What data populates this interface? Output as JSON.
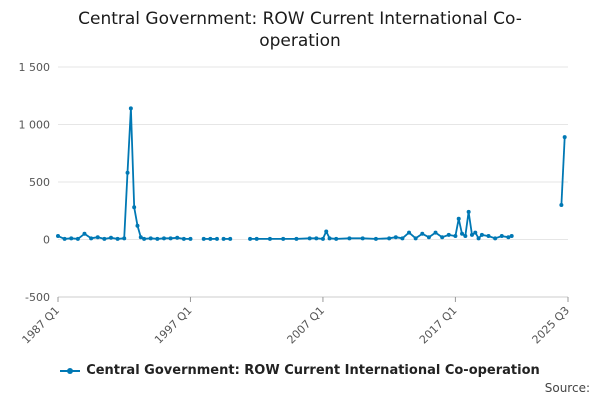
{
  "chart_data": {
    "type": "line",
    "title": "Central Government: ROW Current International Co-operation",
    "xlabel": "",
    "ylabel": "",
    "ylim": [
      -500,
      1500
    ],
    "yticks": [
      -500,
      0,
      500,
      1000,
      1500
    ],
    "ytick_labels": [
      "-500",
      "0",
      "500",
      "1 000",
      "1 500"
    ],
    "xticks": [
      1987.0,
      1997.0,
      2007.0,
      2017.0,
      2025.5
    ],
    "xtick_labels": [
      "1987 Q1",
      "1997 Q1",
      "2007 Q1",
      "2017 Q1",
      "2025 Q3"
    ],
    "xlim": [
      1987.0,
      2025.5
    ],
    "grid": "horizontal",
    "legend_position": "bottom",
    "series": [
      {
        "name": "Central Government: ROW Current International Co-operation",
        "color": "#0078b4",
        "segments": [
          [
            [
              1987.0,
              30
            ],
            [
              1987.5,
              5
            ],
            [
              1988.0,
              10
            ],
            [
              1988.5,
              5
            ],
            [
              1989.0,
              50
            ],
            [
              1989.5,
              10
            ],
            [
              1990.0,
              20
            ],
            [
              1990.5,
              5
            ],
            [
              1991.0,
              15
            ],
            [
              1991.5,
              5
            ],
            [
              1992.0,
              10
            ],
            [
              1992.25,
              580
            ],
            [
              1992.5,
              1140
            ],
            [
              1992.75,
              280
            ],
            [
              1993.0,
              120
            ],
            [
              1993.25,
              20
            ],
            [
              1993.5,
              5
            ],
            [
              1994.0,
              10
            ],
            [
              1994.5,
              5
            ],
            [
              1995.0,
              10
            ],
            [
              1995.5,
              10
            ],
            [
              1996.0,
              15
            ],
            [
              1996.5,
              5
            ],
            [
              1997.0,
              5
            ]
          ],
          [
            [
              1998.0,
              5
            ],
            [
              1998.5,
              5
            ],
            [
              1999.0,
              5
            ]
          ],
          [
            [
              1999.5,
              5
            ],
            [
              2000.0,
              5
            ]
          ],
          [
            [
              2001.5,
              5
            ],
            [
              2002.0,
              5
            ],
            [
              2003.0,
              5
            ],
            [
              2004.0,
              5
            ],
            [
              2005.0,
              5
            ],
            [
              2006.0,
              10
            ],
            [
              2006.5,
              10
            ],
            [
              2007.0,
              5
            ],
            [
              2007.25,
              70
            ],
            [
              2007.5,
              10
            ],
            [
              2008.0,
              5
            ],
            [
              2009.0,
              10
            ],
            [
              2010.0,
              10
            ],
            [
              2011.0,
              5
            ],
            [
              2012.0,
              10
            ],
            [
              2012.5,
              20
            ],
            [
              2013.0,
              10
            ],
            [
              2013.5,
              60
            ],
            [
              2014.0,
              10
            ],
            [
              2014.5,
              50
            ],
            [
              2015.0,
              20
            ],
            [
              2015.5,
              60
            ],
            [
              2016.0,
              20
            ],
            [
              2016.5,
              40
            ],
            [
              2017.0,
              30
            ],
            [
              2017.25,
              180
            ],
            [
              2017.5,
              50
            ],
            [
              2017.75,
              30
            ],
            [
              2018.0,
              240
            ],
            [
              2018.25,
              40
            ],
            [
              2018.5,
              60
            ],
            [
              2018.75,
              10
            ],
            [
              2019.0,
              40
            ],
            [
              2019.5,
              30
            ],
            [
              2020.0,
              10
            ],
            [
              2020.5,
              30
            ],
            [
              2021.0,
              20
            ],
            [
              2021.25,
              30
            ]
          ],
          [
            [
              2025.0,
              300
            ],
            [
              2025.25,
              890
            ]
          ]
        ]
      }
    ],
    "source_label": "Source:"
  }
}
